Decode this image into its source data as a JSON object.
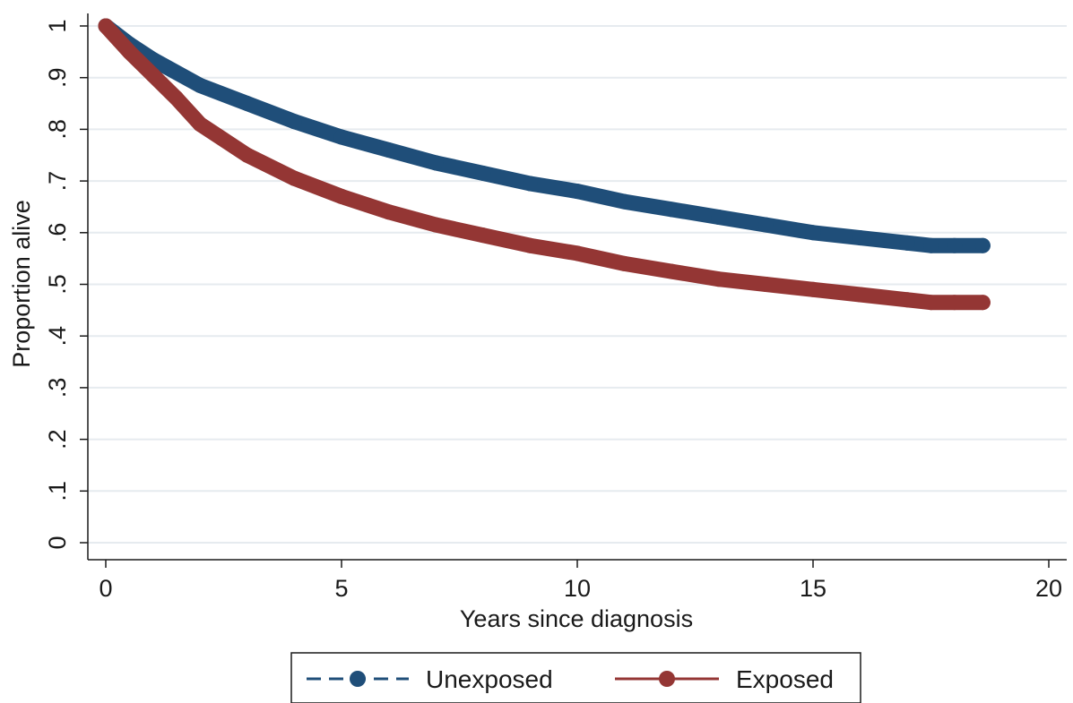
{
  "chart_data": {
    "type": "line",
    "title": "",
    "xlabel": "Years since diagnosis",
    "ylabel": "Proportion alive",
    "xlim": [
      0,
      20
    ],
    "ylim": [
      0,
      1
    ],
    "x_ticks": [
      {
        "value": 0,
        "label": "0"
      },
      {
        "value": 5,
        "label": "5"
      },
      {
        "value": 10,
        "label": "10"
      },
      {
        "value": 15,
        "label": "15"
      },
      {
        "value": 20,
        "label": "20"
      }
    ],
    "y_ticks": [
      {
        "value": 0,
        "label": "0"
      },
      {
        "value": 0.1,
        "label": ".1"
      },
      {
        "value": 0.2,
        "label": ".2"
      },
      {
        "value": 0.3,
        "label": ".3"
      },
      {
        "value": 0.4,
        "label": ".4"
      },
      {
        "value": 0.5,
        "label": ".5"
      },
      {
        "value": 0.6,
        "label": ".6"
      },
      {
        "value": 0.7,
        "label": ".7"
      },
      {
        "value": 0.8,
        "label": ".8"
      },
      {
        "value": 0.9,
        "label": ".9"
      },
      {
        "value": 1,
        "label": "1"
      }
    ],
    "grid": "horizontal",
    "legend_position": "bottom",
    "series": [
      {
        "name": "Unexposed",
        "color": "#1f4e79",
        "line_style": "dashed",
        "x": [
          0,
          0.5,
          1,
          2,
          3,
          4,
          5,
          6,
          7,
          8,
          9,
          10,
          11,
          12,
          13,
          14,
          15,
          16,
          17,
          17.5,
          18,
          18.6
        ],
        "y": [
          1.0,
          0.965,
          0.935,
          0.885,
          0.85,
          0.815,
          0.785,
          0.76,
          0.735,
          0.715,
          0.695,
          0.68,
          0.66,
          0.645,
          0.63,
          0.615,
          0.6,
          0.59,
          0.58,
          0.575,
          0.575,
          0.575
        ]
      },
      {
        "name": "Exposed",
        "color": "#943634",
        "line_style": "solid",
        "x": [
          0,
          0.5,
          1,
          1.5,
          2,
          3,
          4,
          5,
          6,
          7,
          8,
          9,
          10,
          11,
          12,
          13,
          14,
          15,
          16,
          17,
          17.5,
          18,
          18.6
        ],
        "y": [
          1.0,
          0.95,
          0.905,
          0.86,
          0.81,
          0.75,
          0.705,
          0.67,
          0.64,
          0.615,
          0.595,
          0.575,
          0.56,
          0.54,
          0.525,
          0.51,
          0.5,
          0.49,
          0.48,
          0.47,
          0.465,
          0.465,
          0.465
        ]
      }
    ]
  }
}
